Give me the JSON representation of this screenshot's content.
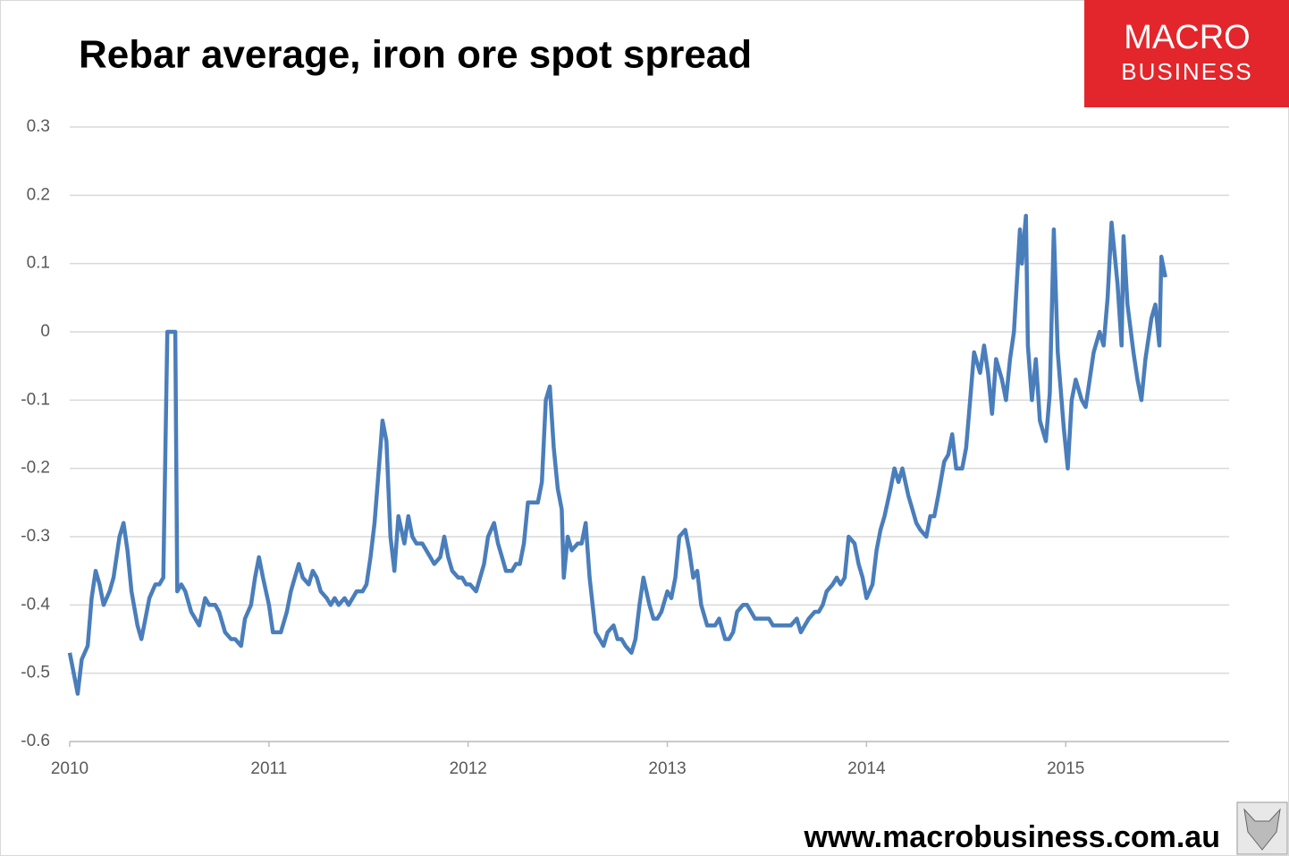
{
  "chart_data": {
    "type": "line",
    "title": "Rebar average, iron ore spot spread",
    "logo": {
      "line1": "MACRO",
      "line2": "BUSINESS"
    },
    "footer": "www.macrobusiness.com.au",
    "xlim": [
      2010,
      2015.82
    ],
    "xticks": [
      2010,
      2011,
      2012,
      2013,
      2014,
      2015
    ],
    "ylim": [
      -0.6,
      0.3
    ],
    "yticks": [
      -0.6,
      -0.5,
      -0.4,
      -0.3,
      -0.2,
      -0.1,
      0,
      0.1,
      0.2,
      0.3
    ],
    "grid": true,
    "series": [
      {
        "color": "#4a7ebb",
        "x": [
          2010.0,
          2010.02,
          2010.04,
          2010.06,
          2010.09,
          2010.11,
          2010.13,
          2010.15,
          2010.17,
          2010.2,
          2010.22,
          2010.25,
          2010.27,
          2010.29,
          2010.31,
          2010.34,
          2010.36,
          2010.38,
          2010.4,
          2010.43,
          2010.45,
          2010.47,
          2010.49,
          2010.52,
          2010.53,
          2010.54,
          2010.56,
          2010.58,
          2010.61,
          2010.63,
          2010.65,
          2010.68,
          2010.7,
          2010.73,
          2010.75,
          2010.78,
          2010.81,
          2010.83,
          2010.86,
          2010.88,
          2010.91,
          2010.93,
          2010.95,
          2010.97,
          2011.0,
          2011.02,
          2011.04,
          2011.06,
          2011.09,
          2011.11,
          2011.13,
          2011.15,
          2011.17,
          2011.2,
          2011.22,
          2011.24,
          2011.26,
          2011.29,
          2011.31,
          2011.33,
          2011.35,
          2011.38,
          2011.4,
          2011.42,
          2011.44,
          2011.47,
          2011.49,
          2011.51,
          2011.53,
          2011.56,
          2011.57,
          2011.59,
          2011.61,
          2011.63,
          2011.65,
          2011.68,
          2011.7,
          2011.72,
          2011.74,
          2011.77,
          2011.79,
          2011.81,
          2011.83,
          2011.86,
          2011.88,
          2011.9,
          2011.92,
          2011.95,
          2011.97,
          2011.99,
          2012.01,
          2012.04,
          2012.06,
          2012.08,
          2012.1,
          2012.13,
          2012.15,
          2012.17,
          2012.19,
          2012.22,
          2012.24,
          2012.26,
          2012.28,
          2012.3,
          2012.33,
          2012.35,
          2012.37,
          2012.39,
          2012.41,
          2012.43,
          2012.45,
          2012.47,
          2012.48,
          2012.5,
          2012.52,
          2012.55,
          2012.57,
          2012.59,
          2012.61,
          2012.64,
          2012.66,
          2012.68,
          2012.7,
          2012.73,
          2012.75,
          2012.77,
          2012.79,
          2012.82,
          2012.84,
          2012.86,
          2012.88,
          2012.91,
          2012.93,
          2012.95,
          2012.97,
          2013.0,
          2013.02,
          2013.04,
          2013.06,
          2013.09,
          2013.11,
          2013.13,
          2013.15,
          2013.17,
          2013.2,
          2013.22,
          2013.24,
          2013.26,
          2013.29,
          2013.31,
          2013.33,
          2013.35,
          2013.38,
          2013.4,
          2013.42,
          2013.44,
          2013.47,
          2013.49,
          2013.51,
          2013.53,
          2013.56,
          2013.58,
          2013.6,
          2013.62,
          2013.65,
          2013.67,
          2013.69,
          2013.71,
          2013.74,
          2013.76,
          2013.78,
          2013.8,
          2013.83,
          2013.85,
          2013.87,
          2013.89,
          2013.91,
          2013.94,
          2013.96,
          2013.98,
          2014.0,
          2014.03,
          2014.05,
          2014.07,
          2014.09,
          2014.12,
          2014.14,
          2014.16,
          2014.18,
          2014.21,
          2014.23,
          2014.25,
          2014.27,
          2014.3,
          2014.32,
          2014.34,
          2014.36,
          2014.39,
          2014.41,
          2014.43,
          2014.45,
          2014.48,
          2014.5,
          2014.52,
          2014.54,
          2014.57,
          2014.59,
          2014.61,
          2014.63,
          2014.65,
          2014.68,
          2014.7,
          2014.72,
          2014.74,
          2014.77,
          2014.78,
          2014.8,
          2014.81,
          2014.83,
          2014.85,
          2014.87,
          2014.9,
          2014.92,
          2014.94,
          2014.96,
          2014.99,
          2015.01,
          2015.03,
          2015.05,
          2015.08,
          2015.1,
          2015.12,
          2015.14,
          2015.17,
          2015.19,
          2015.21,
          2015.23,
          2015.26,
          2015.28,
          2015.29,
          2015.31,
          2015.34,
          2015.36,
          2015.38,
          2015.4,
          2015.43,
          2015.45,
          2015.47,
          2015.48,
          2015.5
        ],
        "values": [
          -0.47,
          -0.5,
          -0.53,
          -0.48,
          -0.46,
          -0.39,
          -0.35,
          -0.37,
          -0.4,
          -0.38,
          -0.36,
          -0.3,
          -0.28,
          -0.32,
          -0.38,
          -0.43,
          -0.45,
          -0.42,
          -0.39,
          -0.37,
          -0.37,
          -0.36,
          0,
          0,
          0,
          -0.38,
          -0.37,
          -0.38,
          -0.41,
          -0.42,
          -0.43,
          -0.39,
          -0.4,
          -0.4,
          -0.41,
          -0.44,
          -0.45,
          -0.45,
          -0.46,
          -0.42,
          -0.4,
          -0.36,
          -0.33,
          -0.36,
          -0.4,
          -0.44,
          -0.44,
          -0.44,
          -0.41,
          -0.38,
          -0.36,
          -0.34,
          -0.36,
          -0.37,
          -0.35,
          -0.36,
          -0.38,
          -0.39,
          -0.4,
          -0.39,
          -0.4,
          -0.39,
          -0.4,
          -0.39,
          -0.38,
          -0.38,
          -0.37,
          -0.33,
          -0.28,
          -0.17,
          -0.13,
          -0.16,
          -0.3,
          -0.35,
          -0.27,
          -0.31,
          -0.27,
          -0.3,
          -0.31,
          -0.31,
          -0.32,
          -0.33,
          -0.34,
          -0.33,
          -0.3,
          -0.33,
          -0.35,
          -0.36,
          -0.36,
          -0.37,
          -0.37,
          -0.38,
          -0.36,
          -0.34,
          -0.3,
          -0.28,
          -0.31,
          -0.33,
          -0.35,
          -0.35,
          -0.34,
          -0.34,
          -0.31,
          -0.25,
          -0.25,
          -0.25,
          -0.22,
          -0.1,
          -0.08,
          -0.17,
          -0.23,
          -0.26,
          -0.36,
          -0.3,
          -0.32,
          -0.31,
          -0.31,
          -0.28,
          -0.36,
          -0.44,
          -0.45,
          -0.46,
          -0.44,
          -0.43,
          -0.45,
          -0.45,
          -0.46,
          -0.47,
          -0.45,
          -0.4,
          -0.36,
          -0.4,
          -0.42,
          -0.42,
          -0.41,
          -0.38,
          -0.39,
          -0.36,
          -0.3,
          -0.29,
          -0.32,
          -0.36,
          -0.35,
          -0.4,
          -0.43,
          -0.43,
          -0.43,
          -0.42,
          -0.45,
          -0.45,
          -0.44,
          -0.41,
          -0.4,
          -0.4,
          -0.41,
          -0.42,
          -0.42,
          -0.42,
          -0.42,
          -0.43,
          -0.43,
          -0.43,
          -0.43,
          -0.43,
          -0.42,
          -0.44,
          -0.43,
          -0.42,
          -0.41,
          -0.41,
          -0.4,
          -0.38,
          -0.37,
          -0.36,
          -0.37,
          -0.36,
          -0.3,
          -0.31,
          -0.34,
          -0.36,
          -0.39,
          -0.37,
          -0.32,
          -0.29,
          -0.27,
          -0.23,
          -0.2,
          -0.22,
          -0.2,
          -0.24,
          -0.26,
          -0.28,
          -0.29,
          -0.3,
          -0.27,
          -0.27,
          -0.24,
          -0.19,
          -0.18,
          -0.15,
          -0.2,
          -0.2,
          -0.17,
          -0.1,
          -0.03,
          -0.06,
          -0.02,
          -0.06,
          -0.12,
          -0.04,
          -0.07,
          -0.1,
          -0.04,
          0,
          0.15,
          0.1,
          0.17,
          -0.02,
          -0.1,
          -0.04,
          -0.13,
          -0.16,
          -0.09,
          0.15,
          -0.03,
          -0.14,
          -0.2,
          -0.1,
          -0.07,
          -0.1,
          -0.11,
          -0.07,
          -0.03,
          0,
          -0.02,
          0.05,
          0.16,
          0.07,
          -0.02,
          0.14,
          0.04,
          -0.03,
          -0.07,
          -0.1,
          -0.04,
          0.02,
          0.04,
          -0.02,
          0.11,
          0.08
        ]
      }
    ]
  }
}
